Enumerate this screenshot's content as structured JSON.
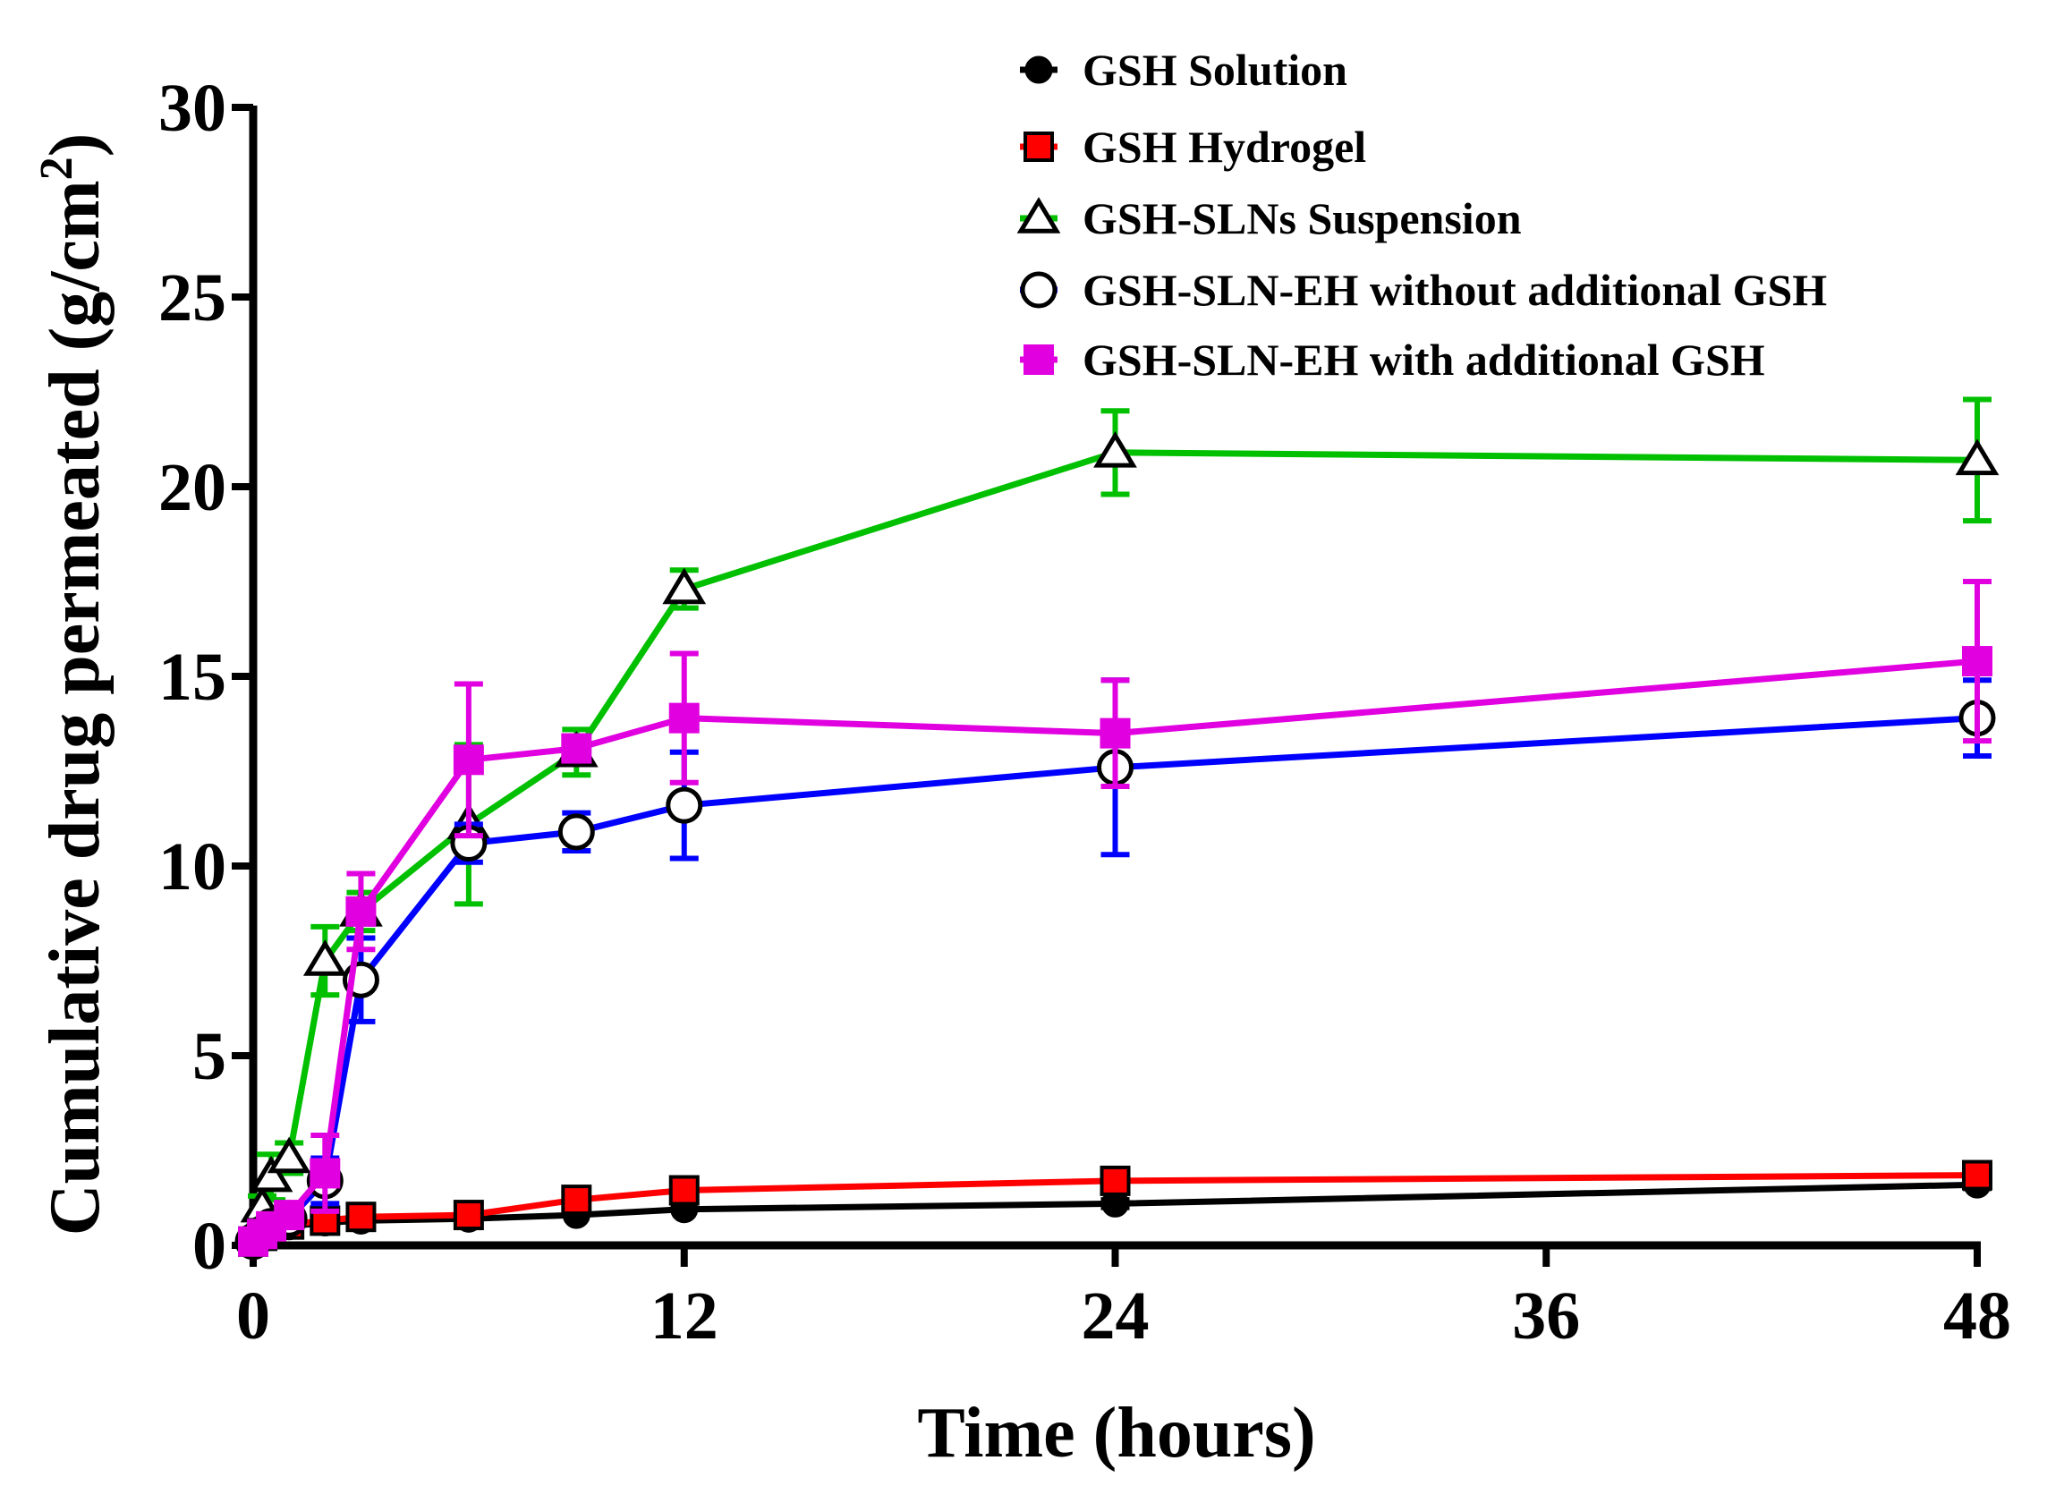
{
  "chart_data": {
    "type": "line",
    "title": "",
    "xlabel": "Time (hours)",
    "ylabel_main": "Cumulative drug permeated (g/cm",
    "ylabel_sup": "2",
    "ylabel_close": ")",
    "xlim": [
      0,
      48
    ],
    "ylim": [
      0,
      30
    ],
    "xticks": [
      0,
      12,
      24,
      36,
      48
    ],
    "yticks": [
      0,
      5,
      10,
      15,
      20,
      25,
      30
    ],
    "grid": false,
    "legend_position": "top-right",
    "series": [
      {
        "name": "GSH Solution",
        "color": "#000000",
        "marker": "circle-filled",
        "x": [
          0,
          0.25,
          0.5,
          1,
          2,
          3,
          6,
          9,
          12,
          24,
          48
        ],
        "y": [
          0.1,
          0.2,
          0.3,
          0.5,
          0.6,
          0.65,
          0.7,
          0.8,
          0.95,
          1.1,
          1.6
        ],
        "err": [
          0,
          0,
          0,
          0,
          0,
          0,
          0,
          0,
          0,
          0.1,
          0.1
        ]
      },
      {
        "name": "GSH Hydrogel",
        "color": "#ff0000",
        "marker": "square-filled",
        "x": [
          0,
          0.25,
          0.5,
          1,
          2,
          3,
          6,
          9,
          12,
          24,
          48
        ],
        "y": [
          0.1,
          0.25,
          0.4,
          0.55,
          0.65,
          0.75,
          0.8,
          1.2,
          1.45,
          1.7,
          1.85
        ],
        "err": [
          0,
          0,
          0,
          0,
          0,
          0,
          0,
          0.1,
          0.15,
          0.25,
          0.15
        ]
      },
      {
        "name": "GSH-SLNs Suspension",
        "color": "#00c000",
        "marker": "triangle-open",
        "x": [
          0,
          0.25,
          0.5,
          1,
          2,
          3,
          6,
          9,
          12,
          24,
          48
        ],
        "y": [
          0.3,
          1.0,
          1.8,
          2.3,
          7.5,
          8.8,
          11.1,
          13.0,
          17.3,
          20.9,
          20.7
        ],
        "err": [
          0,
          0.3,
          0.6,
          0.4,
          0.9,
          0.5,
          2.1,
          0.6,
          0.5,
          1.1,
          1.6
        ]
      },
      {
        "name": "GSH-SLN-EH without additional GSH",
        "color": "#0000ff",
        "marker": "circle-open",
        "x": [
          0,
          0.25,
          0.5,
          1,
          2,
          3,
          6,
          9,
          12,
          24,
          48
        ],
        "y": [
          0.1,
          0.3,
          0.5,
          0.7,
          1.7,
          7.0,
          10.6,
          10.9,
          11.6,
          12.6,
          13.9
        ],
        "err": [
          0,
          0,
          0,
          0.2,
          0.6,
          1.1,
          0.5,
          0.5,
          1.4,
          2.3,
          1.0
        ]
      },
      {
        "name": "GSH-SLN-EH with additional GSH",
        "color": "#e000e0",
        "marker": "square-filled",
        "x": [
          0,
          0.25,
          0.5,
          1,
          2,
          3,
          6,
          9,
          12,
          24,
          48
        ],
        "y": [
          0.1,
          0.3,
          0.5,
          0.8,
          1.9,
          8.8,
          12.8,
          13.1,
          13.9,
          13.5,
          15.4
        ],
        "err": [
          0,
          0,
          0,
          0.2,
          1.0,
          1.0,
          2.0,
          0.3,
          1.7,
          1.4,
          2.1
        ]
      }
    ]
  }
}
